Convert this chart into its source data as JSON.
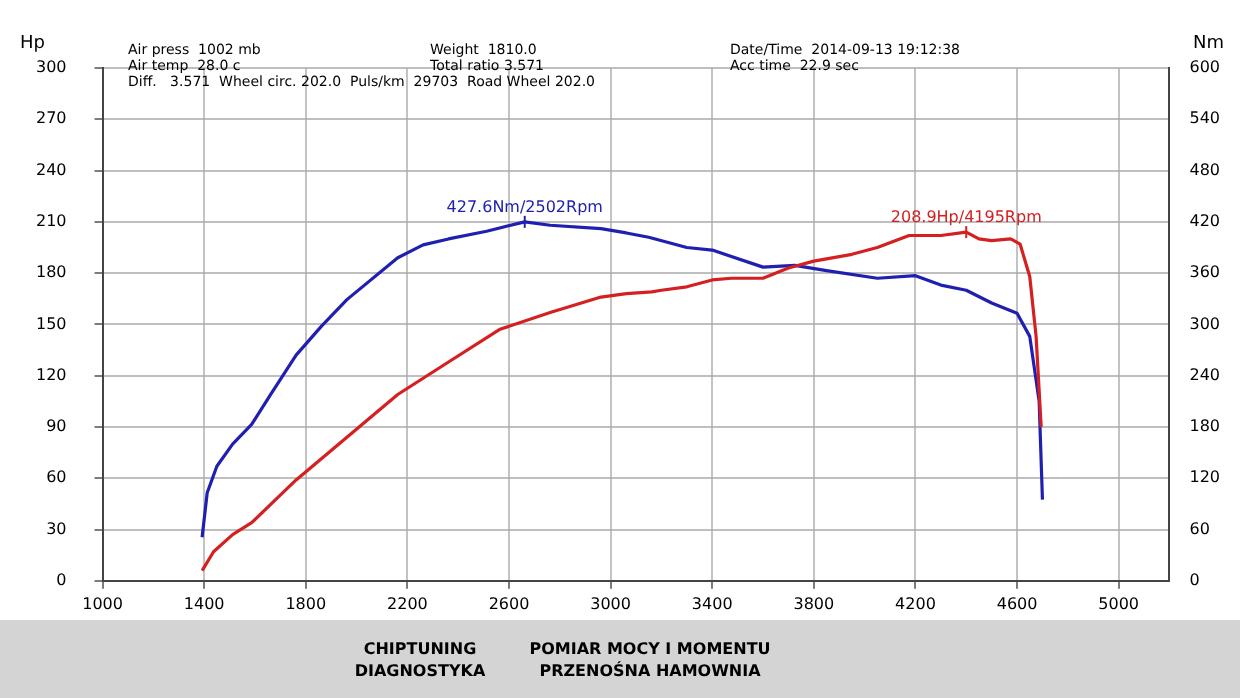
{
  "chart_data": {
    "type": "line",
    "ylabel": "Hp",
    "y2label": "Nm",
    "x": [
      1392,
      1437,
      1512,
      1587,
      1762,
      1962,
      2162,
      2362,
      2562,
      2762,
      2962,
      3062,
      3162,
      3200,
      3300,
      3400,
      3475,
      3600,
      3700,
      3800,
      3950,
      4050,
      4175,
      4300,
      4400,
      4450,
      4500,
      4575,
      4612,
      4650,
      4675,
      4695
    ],
    "series": [
      {
        "color": "#d42020",
        "values": [
          6,
          17,
          27,
          34,
          59,
          84,
          109,
          128,
          147,
          157,
          166,
          168,
          169,
          170,
          172,
          176,
          177,
          177,
          183,
          187,
          191,
          195,
          202,
          202,
          204,
          200,
          199,
          200,
          197,
          178,
          143,
          90
        ]
      },
      {
        "color": "#2020b0",
        "axis": "y2",
        "x": [
          1392,
          1412,
          1450,
          1512,
          1587,
          1662,
          1762,
          1862,
          1962,
          2162,
          2262,
          2362,
          2512,
          2662,
          2762,
          2962,
          3062,
          3150,
          3300,
          3400,
          3600,
          3725,
          3850,
          4050,
          4200,
          4300,
          4400,
          4500,
          4600,
          4650,
          4687,
          4700
        ],
        "values": [
          51,
          103,
          134,
          160,
          183,
          218,
          264,
          298,
          329,
          378,
          393,
          400,
          409,
          420,
          416,
          412,
          407,
          402,
          390,
          387,
          367,
          369,
          363,
          354,
          357,
          346,
          340,
          325,
          313,
          286,
          210,
          95
        ]
      }
    ],
    "xlim": [
      1000,
      5200
    ],
    "xticks": [
      1000,
      1400,
      1800,
      2200,
      2600,
      3000,
      3400,
      3800,
      4200,
      4600,
      5000
    ],
    "ylim": [
      0,
      300
    ],
    "yticks": [
      0,
      30,
      60,
      90,
      120,
      150,
      180,
      210,
      240,
      270,
      300
    ],
    "y2lim": [
      0,
      600
    ],
    "y2ticks": [
      0,
      60,
      120,
      180,
      240,
      300,
      360,
      420,
      480,
      540,
      600
    ],
    "grid": true,
    "legend": false,
    "marker": "none",
    "line_style": "solid",
    "annotations": [
      "427.6Nm/2502Rpm",
      "208.9Hp/4195Rpm",
      "Air press  1002 mb",
      "Air temp  28.0 c",
      "Diff.   3.571  Wheel circ. 202.0  Puls/km  29703  Road Wheel 202.0",
      "Weight  1810.0",
      "Total ratio 3.571",
      "Date/Time  2014-09-13 19:12:38",
      "Acc time  22.9 sec",
      "CHIPTUNING",
      "DIAGNOSTYKA",
      "POMIAR MOCY I MOMENTU",
      "PRZENOŚNA HAMOWNIA"
    ]
  }
}
